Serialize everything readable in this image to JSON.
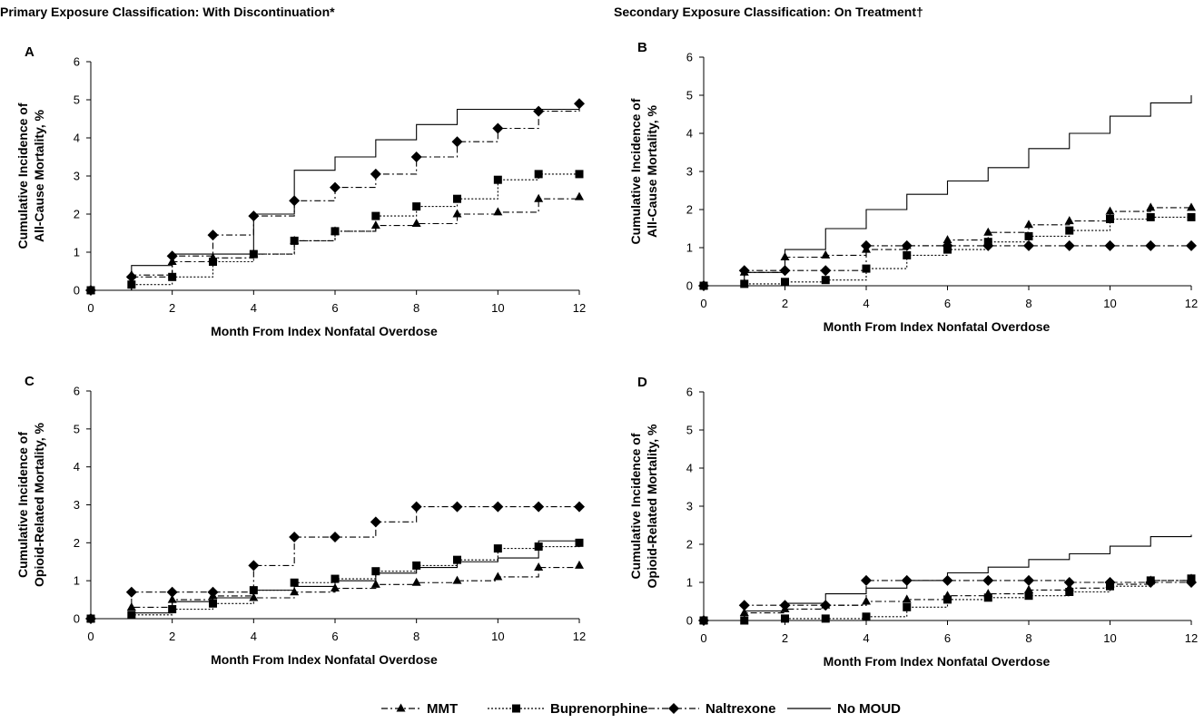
{
  "headings": {
    "left": "Primary Exposure Classification: With Discontinuation*",
    "right": "Secondary Exposure Classification: On Treatment†"
  },
  "legend": [
    {
      "name": "MMT",
      "marker": "triangle",
      "dash": "dash-dot"
    },
    {
      "name": "Buprenorphine",
      "marker": "square",
      "dash": "dotted"
    },
    {
      "name": "Naltrexone",
      "marker": "diamond",
      "dash": "dash-dot"
    },
    {
      "name": "No MOUD",
      "marker": "none",
      "dash": "solid"
    }
  ],
  "chart_data": [
    {
      "panel": "A",
      "type": "line",
      "step": true,
      "ylabel_lines": [
        "Cumulative Incidence of",
        "All-Cause Mortality, %"
      ],
      "xlabel": "Month From Index Nonfatal Overdose",
      "xlim": [
        0,
        12
      ],
      "ylim": [
        0,
        6
      ],
      "xticks": [
        0,
        2,
        4,
        6,
        8,
        10,
        12
      ],
      "yticks": [
        0,
        1,
        2,
        3,
        4,
        5,
        6
      ],
      "grid": false,
      "series": [
        {
          "name": "MMT",
          "x": [
            0,
            1,
            2,
            3,
            4,
            5,
            6,
            7,
            8,
            9,
            10,
            11,
            12
          ],
          "y": [
            0,
            0.4,
            0.75,
            0.85,
            0.95,
            1.3,
            1.55,
            1.7,
            1.75,
            2.0,
            2.05,
            2.4,
            2.45
          ]
        },
        {
          "name": "Buprenorphine",
          "x": [
            0,
            1,
            2,
            3,
            4,
            5,
            6,
            7,
            8,
            9,
            10,
            11,
            12
          ],
          "y": [
            0,
            0.15,
            0.35,
            0.75,
            0.95,
            1.3,
            1.55,
            1.95,
            2.2,
            2.4,
            2.9,
            3.05,
            3.05
          ]
        },
        {
          "name": "Naltrexone",
          "x": [
            0,
            1,
            2,
            3,
            4,
            5,
            6,
            7,
            8,
            9,
            10,
            11,
            12
          ],
          "y": [
            0,
            0.35,
            0.9,
            1.45,
            1.95,
            2.35,
            2.7,
            3.05,
            3.5,
            3.9,
            4.25,
            4.7,
            4.9
          ]
        },
        {
          "name": "No MOUD",
          "x": [
            0,
            1,
            2,
            3,
            4,
            5,
            6,
            7,
            8,
            9,
            10,
            11,
            12
          ],
          "y": [
            0,
            0.65,
            0.95,
            0.95,
            2.0,
            3.15,
            3.5,
            3.95,
            4.35,
            4.75,
            4.75,
            4.75,
            4.75
          ]
        }
      ]
    },
    {
      "panel": "B",
      "type": "line",
      "step": true,
      "ylabel_lines": [
        "Cumulative Incidence of",
        "All-Cause Mortality, %"
      ],
      "xlabel": "Month From Index Nonfatal Overdose",
      "xlim": [
        0,
        12
      ],
      "ylim": [
        0,
        6
      ],
      "xticks": [
        0,
        2,
        4,
        6,
        8,
        10,
        12
      ],
      "yticks": [
        0,
        1,
        2,
        3,
        4,
        5,
        6
      ],
      "grid": false,
      "series": [
        {
          "name": "MMT",
          "x": [
            0,
            1,
            2,
            3,
            4,
            5,
            6,
            7,
            8,
            9,
            10,
            11,
            12
          ],
          "y": [
            0,
            0.35,
            0.75,
            0.8,
            0.95,
            1.05,
            1.2,
            1.4,
            1.6,
            1.7,
            1.95,
            2.05,
            2.05
          ]
        },
        {
          "name": "Buprenorphine",
          "x": [
            0,
            1,
            2,
            3,
            4,
            5,
            6,
            7,
            8,
            9,
            10,
            11,
            12
          ],
          "y": [
            0,
            0.05,
            0.1,
            0.15,
            0.45,
            0.8,
            0.95,
            1.15,
            1.3,
            1.45,
            1.75,
            1.8,
            1.8
          ]
        },
        {
          "name": "Naltrexone",
          "x": [
            0,
            1,
            2,
            3,
            4,
            5,
            6,
            7,
            8,
            9,
            10,
            11,
            12
          ],
          "y": [
            0,
            0.4,
            0.4,
            0.4,
            1.05,
            1.05,
            1.05,
            1.05,
            1.05,
            1.05,
            1.05,
            1.05,
            1.05
          ]
        },
        {
          "name": "No MOUD",
          "x": [
            0,
            1,
            2,
            3,
            4,
            5,
            6,
            7,
            8,
            9,
            10,
            11,
            12
          ],
          "y": [
            0,
            0.35,
            0.95,
            1.5,
            2.0,
            2.4,
            2.75,
            3.1,
            3.6,
            4.0,
            4.45,
            4.8,
            5.0
          ]
        }
      ]
    },
    {
      "panel": "C",
      "type": "line",
      "step": true,
      "ylabel_lines": [
        "Cumulative Incidence of",
        "Opioid-Related Mortality, %"
      ],
      "xlabel": "Month From Index Nonfatal Overdose",
      "xlim": [
        0,
        12
      ],
      "ylim": [
        0,
        6
      ],
      "xticks": [
        0,
        2,
        4,
        6,
        8,
        10,
        12
      ],
      "yticks": [
        0,
        1,
        2,
        3,
        4,
        5,
        6
      ],
      "grid": false,
      "series": [
        {
          "name": "MMT",
          "x": [
            0,
            1,
            2,
            3,
            4,
            5,
            6,
            7,
            8,
            9,
            10,
            11,
            12
          ],
          "y": [
            0,
            0.3,
            0.5,
            0.6,
            0.55,
            0.7,
            0.8,
            0.9,
            0.95,
            1.0,
            1.1,
            1.35,
            1.4
          ]
        },
        {
          "name": "Buprenorphine",
          "x": [
            0,
            1,
            2,
            3,
            4,
            5,
            6,
            7,
            8,
            9,
            10,
            11,
            12
          ],
          "y": [
            0,
            0.1,
            0.25,
            0.4,
            0.75,
            0.95,
            1.05,
            1.25,
            1.4,
            1.55,
            1.85,
            1.9,
            2.0
          ]
        },
        {
          "name": "Naltrexone",
          "x": [
            0,
            1,
            2,
            3,
            4,
            5,
            6,
            7,
            8,
            9,
            10,
            11,
            12
          ],
          "y": [
            0,
            0.7,
            0.7,
            0.7,
            1.4,
            2.15,
            2.15,
            2.55,
            2.95,
            2.95,
            2.95,
            2.95,
            2.95
          ]
        },
        {
          "name": "No MOUD",
          "x": [
            0,
            1,
            2,
            3,
            4,
            5,
            6,
            7,
            8,
            9,
            10,
            11,
            12
          ],
          "y": [
            0,
            0.15,
            0.45,
            0.55,
            0.75,
            0.85,
            1.0,
            1.2,
            1.35,
            1.5,
            1.6,
            2.05,
            2.1
          ]
        }
      ]
    },
    {
      "panel": "D",
      "type": "line",
      "step": true,
      "ylabel_lines": [
        "Cumulative Incidence of",
        "Opioid-Related Mortality, %"
      ],
      "xlabel": "Month From Index Nonfatal Overdose",
      "xlim": [
        0,
        12
      ],
      "ylim": [
        0,
        6
      ],
      "xticks": [
        0,
        2,
        4,
        6,
        8,
        10,
        12
      ],
      "yticks": [
        0,
        1,
        2,
        3,
        4,
        5,
        6
      ],
      "grid": false,
      "series": [
        {
          "name": "MMT",
          "x": [
            0,
            1,
            2,
            3,
            4,
            5,
            6,
            7,
            8,
            9,
            10,
            11,
            12
          ],
          "y": [
            0,
            0.2,
            0.3,
            0.4,
            0.5,
            0.55,
            0.65,
            0.7,
            0.8,
            0.85,
            0.95,
            1.05,
            1.1
          ]
        },
        {
          "name": "Buprenorphine",
          "x": [
            0,
            1,
            2,
            3,
            4,
            5,
            6,
            7,
            8,
            9,
            10,
            11,
            12
          ],
          "y": [
            0,
            0.0,
            0.05,
            0.05,
            0.1,
            0.35,
            0.55,
            0.6,
            0.65,
            0.75,
            0.9,
            1.05,
            1.1
          ]
        },
        {
          "name": "Naltrexone",
          "x": [
            0,
            1,
            2,
            3,
            4,
            5,
            6,
            7,
            8,
            9,
            10,
            11,
            12
          ],
          "y": [
            0,
            0.4,
            0.4,
            0.4,
            1.05,
            1.05,
            1.05,
            1.05,
            1.05,
            1.0,
            1.0,
            1.0,
            1.0
          ]
        },
        {
          "name": "No MOUD",
          "x": [
            0,
            1,
            2,
            3,
            4,
            5,
            6,
            7,
            8,
            9,
            10,
            11,
            12
          ],
          "y": [
            0,
            0.25,
            0.45,
            0.7,
            0.85,
            1.05,
            1.25,
            1.4,
            1.6,
            1.75,
            1.95,
            2.2,
            2.25
          ]
        }
      ]
    }
  ]
}
